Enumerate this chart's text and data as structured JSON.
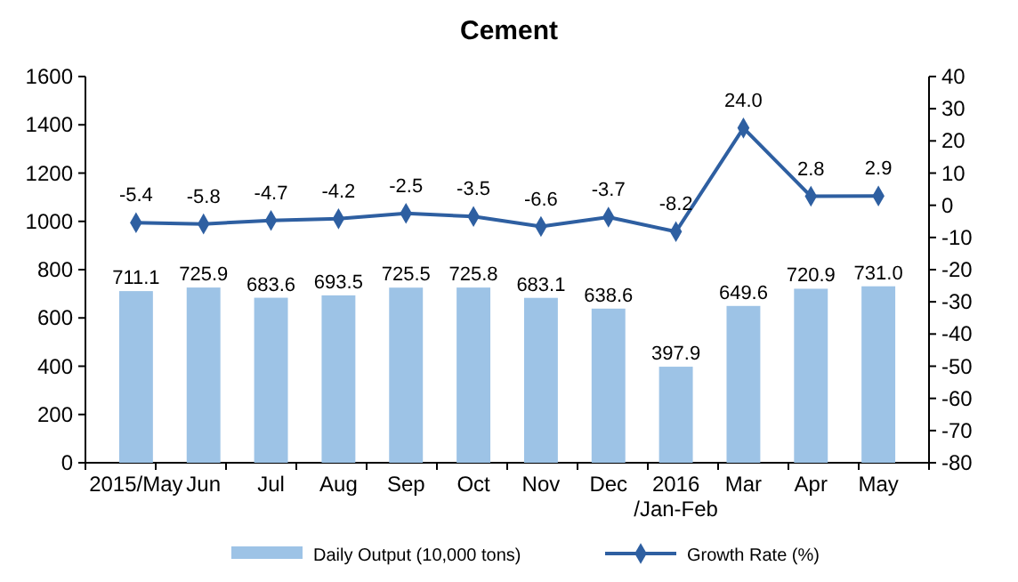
{
  "chart_data": {
    "type": "bar",
    "title": "Cement",
    "categories": [
      "2015/May",
      "Jun",
      "Jul",
      "Aug",
      "Sep",
      "Oct",
      "Nov",
      "Dec",
      "2016\n/Jan-Feb",
      "Mar",
      "Apr",
      "May"
    ],
    "series": [
      {
        "name": "Daily Output (10,000 tons)",
        "color": "#9dc3e6",
        "values": [
          711.1,
          725.9,
          683.6,
          693.5,
          725.5,
          725.8,
          683.1,
          638.6,
          397.9,
          649.6,
          720.9,
          731.0
        ],
        "value_labels": [
          "711.1",
          "725.9",
          "683.6",
          "693.5",
          "725.5",
          "725.8",
          "683.1",
          "638.6",
          "397.9",
          "649.6",
          "720.9",
          "731.0"
        ]
      },
      {
        "name": "Growth Rate (%)",
        "type": "line",
        "axis": "y2",
        "color": "#2e5fa1",
        "marker": "diamond",
        "values": [
          -5.4,
          -5.8,
          -4.7,
          -4.2,
          -2.5,
          -3.5,
          -6.6,
          -3.7,
          -8.2,
          24.0,
          2.8,
          2.9
        ],
        "value_labels": [
          "-5.4",
          "-5.8",
          "-4.7",
          "-4.2",
          "-2.5",
          "-3.5",
          "-6.6",
          "-3.7",
          "-8.2",
          "24.0",
          "2.8",
          "2.9"
        ]
      }
    ],
    "ylim": [
      0,
      1600
    ],
    "yticks": [
      0,
      200,
      400,
      600,
      800,
      1000,
      1200,
      1400,
      1600
    ],
    "y2lim": [
      -80,
      40
    ],
    "y2ticks": [
      -80,
      -70,
      -60,
      -50,
      -40,
      -30,
      -20,
      -10,
      0,
      10,
      20,
      30,
      40
    ],
    "legend": "bottom"
  }
}
